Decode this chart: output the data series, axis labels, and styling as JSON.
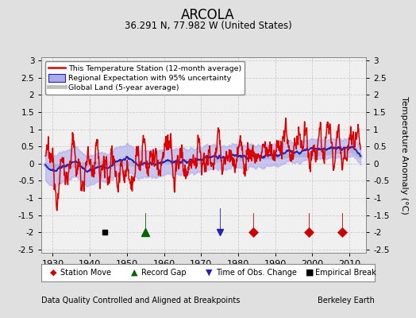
{
  "title": "ARCOLA",
  "subtitle": "36.291 N, 77.982 W (United States)",
  "ylabel": "Temperature Anomaly (°C)",
  "xlabel_note": "Data Quality Controlled and Aligned at Breakpoints",
  "credit": "Berkeley Earth",
  "xlim": [
    1927,
    2014.5
  ],
  "ylim": [
    -2.6,
    3.1
  ],
  "yticks": [
    -2.5,
    -2,
    -1.5,
    -1,
    -0.5,
    0,
    0.5,
    1,
    1.5,
    2,
    2.5,
    3
  ],
  "xticks": [
    1930,
    1940,
    1950,
    1960,
    1970,
    1980,
    1990,
    2000,
    2010
  ],
  "bg_color": "#e0e0e0",
  "plot_bg_color": "#f0f0f0",
  "station_move_years": [
    1984,
    1999,
    2008
  ],
  "record_gap_years": [
    1955
  ],
  "time_obs_years": [
    1975
  ],
  "empirical_break_years": [
    1944
  ],
  "marker_y": -2.0,
  "red_color": "#dd0000",
  "blue_color": "#2222bb",
  "blue_fill_color": "#aaaaee",
  "gray_color": "#c0c0c0",
  "seed": 12345
}
